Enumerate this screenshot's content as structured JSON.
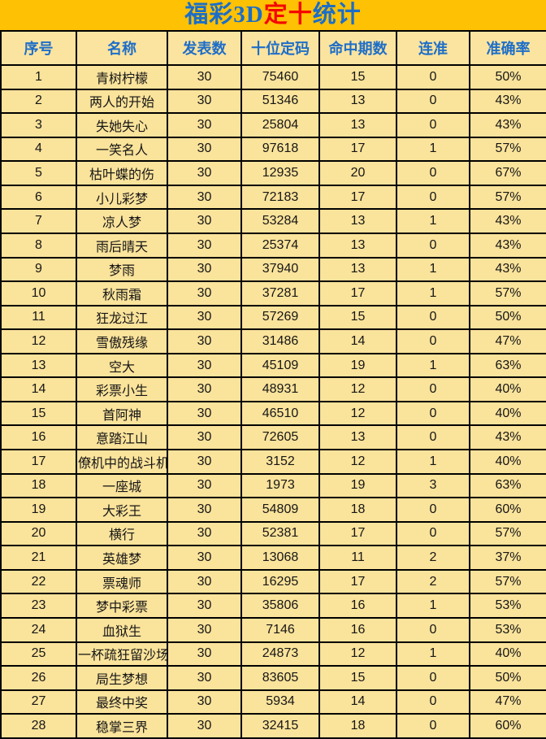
{
  "title": {
    "part_blue_1": "福彩3D",
    "part_red": "定十",
    "part_blue_2": "统计"
  },
  "colors": {
    "band_background": "#FFC103",
    "cell_background": "#FAE39B",
    "header_text": "#1E6EC8",
    "title_blue": "#1B6EC8",
    "title_red": "#F50500",
    "grid_border": "#000000",
    "body_text": "#161616"
  },
  "table": {
    "columns": [
      "序号",
      "名称",
      "发表数",
      "十位定码",
      "命中期数",
      "连准",
      "准确率"
    ],
    "column_keys": [
      "no",
      "name",
      "published",
      "code",
      "hits",
      "streak",
      "accuracy"
    ],
    "rows": [
      {
        "no": "1",
        "name": "青树柠檬",
        "published": "30",
        "code": "75460",
        "hits": "15",
        "streak": "0",
        "accuracy": "50%"
      },
      {
        "no": "2",
        "name": "两人的开始",
        "published": "30",
        "code": "51346",
        "hits": "13",
        "streak": "0",
        "accuracy": "43%"
      },
      {
        "no": "3",
        "name": "失她失心",
        "published": "30",
        "code": "25804",
        "hits": "13",
        "streak": "0",
        "accuracy": "43%"
      },
      {
        "no": "4",
        "name": "一笑名人",
        "published": "30",
        "code": "97618",
        "hits": "17",
        "streak": "1",
        "accuracy": "57%"
      },
      {
        "no": "5",
        "name": "枯叶蝶的伤",
        "published": "30",
        "code": "12935",
        "hits": "20",
        "streak": "0",
        "accuracy": "67%"
      },
      {
        "no": "6",
        "name": "小儿彩梦",
        "published": "30",
        "code": "72183",
        "hits": "17",
        "streak": "0",
        "accuracy": "57%"
      },
      {
        "no": "7",
        "name": "凉人梦",
        "published": "30",
        "code": "53284",
        "hits": "13",
        "streak": "1",
        "accuracy": "43%"
      },
      {
        "no": "8",
        "name": "雨后晴天",
        "published": "30",
        "code": "25374",
        "hits": "13",
        "streak": "0",
        "accuracy": "43%"
      },
      {
        "no": "9",
        "name": "梦雨",
        "published": "30",
        "code": "37940",
        "hits": "13",
        "streak": "1",
        "accuracy": "43%"
      },
      {
        "no": "10",
        "name": "秋雨霜",
        "published": "30",
        "code": "37281",
        "hits": "17",
        "streak": "1",
        "accuracy": "57%"
      },
      {
        "no": "11",
        "name": "狂龙过江",
        "published": "30",
        "code": "57269",
        "hits": "15",
        "streak": "0",
        "accuracy": "50%"
      },
      {
        "no": "12",
        "name": "雪傲残缘",
        "published": "30",
        "code": "31486",
        "hits": "14",
        "streak": "0",
        "accuracy": "47%"
      },
      {
        "no": "13",
        "name": "空大",
        "published": "30",
        "code": "45109",
        "hits": "19",
        "streak": "1",
        "accuracy": "63%"
      },
      {
        "no": "14",
        "name": "彩票小生",
        "published": "30",
        "code": "48931",
        "hits": "12",
        "streak": "0",
        "accuracy": "40%"
      },
      {
        "no": "15",
        "name": "首阿神",
        "published": "30",
        "code": "46510",
        "hits": "12",
        "streak": "0",
        "accuracy": "40%"
      },
      {
        "no": "16",
        "name": "意踏江山",
        "published": "30",
        "code": "72605",
        "hits": "13",
        "streak": "0",
        "accuracy": "43%"
      },
      {
        "no": "17",
        "name": "僚机中的战斗机",
        "published": "30",
        "code": "3152",
        "hits": "12",
        "streak": "1",
        "accuracy": "40%"
      },
      {
        "no": "18",
        "name": "一座城",
        "published": "30",
        "code": "1973",
        "hits": "19",
        "streak": "3",
        "accuracy": "63%"
      },
      {
        "no": "19",
        "name": "大彩王",
        "published": "30",
        "code": "54809",
        "hits": "18",
        "streak": "0",
        "accuracy": "60%"
      },
      {
        "no": "20",
        "name": "横行",
        "published": "30",
        "code": "52381",
        "hits": "17",
        "streak": "0",
        "accuracy": "57%"
      },
      {
        "no": "21",
        "name": "英雄梦",
        "published": "30",
        "code": "13068",
        "hits": "11",
        "streak": "2",
        "accuracy": "37%"
      },
      {
        "no": "22",
        "name": "票魂师",
        "published": "30",
        "code": "16295",
        "hits": "17",
        "streak": "2",
        "accuracy": "57%"
      },
      {
        "no": "23",
        "name": "梦中彩票",
        "published": "30",
        "code": "35806",
        "hits": "16",
        "streak": "1",
        "accuracy": "53%"
      },
      {
        "no": "24",
        "name": "血狱生",
        "published": "30",
        "code": "7146",
        "hits": "16",
        "streak": "0",
        "accuracy": "53%"
      },
      {
        "no": "25",
        "name": "一杯疏狂留沙场",
        "published": "30",
        "code": "24873",
        "hits": "12",
        "streak": "1",
        "accuracy": "40%"
      },
      {
        "no": "26",
        "name": "局生梦想",
        "published": "30",
        "code": "83605",
        "hits": "15",
        "streak": "0",
        "accuracy": "50%"
      },
      {
        "no": "27",
        "name": "最终中奖",
        "published": "30",
        "code": "5934",
        "hits": "14",
        "streak": "0",
        "accuracy": "47%"
      },
      {
        "no": "28",
        "name": "稳掌三界",
        "published": "30",
        "code": "32415",
        "hits": "18",
        "streak": "0",
        "accuracy": "60%"
      }
    ]
  }
}
